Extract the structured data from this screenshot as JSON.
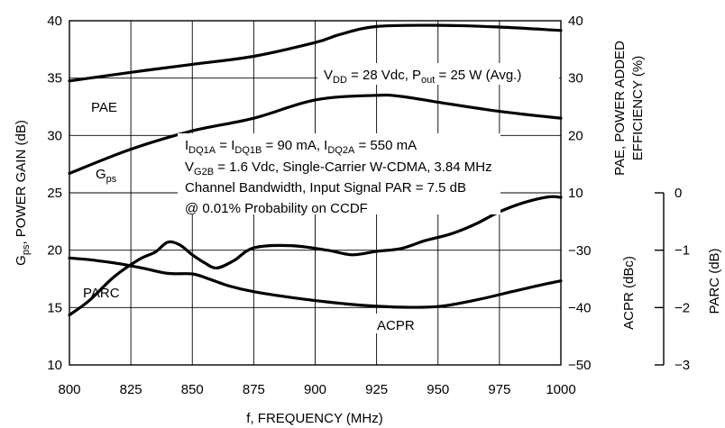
{
  "chart_data": {
    "type": "line",
    "xlabel": "f, FREQUENCY (MHz)",
    "x_ticks": [
      "800",
      "825",
      "850",
      "875",
      "900",
      "925",
      "950",
      "975",
      "1000"
    ],
    "xlim": [
      800,
      1000
    ],
    "y_left": {
      "label_main": "G",
      "label_sub": "ps",
      "label_rest": ", POWER GAIN (dB)",
      "ylim": [
        10,
        40
      ],
      "ticks": [
        "10",
        "15",
        "20",
        "25",
        "30",
        "35",
        "40"
      ]
    },
    "y_right_pae": {
      "label_line1": "PAE, POWER ADDED",
      "label_line2": "EFFICIENCY (%)",
      "range": [
        20,
        40
      ],
      "ticks": [
        "40",
        "30",
        "20",
        "10"
      ]
    },
    "y_right_acpr": {
      "label": "ACPR (dBc)",
      "range": [
        -50,
        -30
      ],
      "ticks": [
        "-30",
        "-40",
        "-50"
      ]
    },
    "y_far_right_parc": {
      "label": "PARC (dB)",
      "range": [
        -3,
        0
      ],
      "ticks": [
        "0",
        "-1",
        "-2",
        "-3"
      ]
    },
    "series": [
      {
        "name": "PAE",
        "x": [
          800,
          825,
          850,
          875,
          900,
          910,
          925,
          950,
          975,
          1000
        ],
        "y": [
          29.5,
          31.0,
          32.4,
          33.8,
          36.2,
          37.6,
          39.0,
          39.2,
          38.9,
          38.3
        ]
      },
      {
        "name": "G",
        "x": [
          800,
          825,
          850,
          875,
          900,
          925,
          935,
          950,
          975,
          1000
        ],
        "y": [
          26.7,
          28.8,
          30.4,
          31.5,
          33.1,
          33.5,
          33.4,
          32.9,
          32.1,
          31.5
        ]
      },
      {
        "name": "ACPR",
        "x": [
          800,
          810,
          820,
          830,
          840,
          850,
          857,
          865,
          875,
          890,
          905,
          920,
          935,
          950,
          965,
          980,
          990,
          1000
        ],
        "y": [
          -31.3,
          -31.7,
          -32.3,
          -33.1,
          -34.0,
          -34.1,
          -35.0,
          -36.2,
          -37.2,
          -38.2,
          -39.0,
          -39.6,
          -39.9,
          -39.8,
          -38.7,
          -37.2,
          -36.2,
          -35.3
        ]
      },
      {
        "name": "PARC",
        "x": [
          800,
          808,
          818,
          828,
          835,
          840,
          845,
          850,
          855,
          860,
          867,
          875,
          890,
          905,
          915,
          925,
          935,
          945,
          955,
          965,
          975,
          985,
          995,
          1000
        ],
        "y": [
          -2.13,
          -1.88,
          -1.47,
          -1.17,
          -1.03,
          -0.86,
          -0.91,
          -1.08,
          -1.22,
          -1.31,
          -1.18,
          -0.96,
          -0.92,
          -1.0,
          -1.08,
          -1.02,
          -0.97,
          -0.83,
          -0.72,
          -0.55,
          -0.33,
          -0.17,
          -0.07,
          -0.08
        ]
      }
    ],
    "series_labels": [
      {
        "text": "PAE"
      },
      {
        "text": "G",
        "sub": "ps"
      },
      {
        "text": "PARC"
      },
      {
        "text": "ACPR"
      }
    ],
    "annotations": {
      "vdd": {
        "a": "V",
        "a_sub": "DD",
        "b": " = 28 Vdc, P",
        "b_sub": "out",
        "c": " = 25 W (Avg.)"
      },
      "idq": {
        "a": "I",
        "a_sub": "DQ1A",
        "b": " = I",
        "b_sub": "DQ1B",
        "c": " = 90 mA, I",
        "c_sub": "DQ2A",
        "d": " = 550 mA"
      },
      "vg2b": {
        "a": "V",
        "a_sub": "G2B",
        "b": " = 1.6 Vdc, Single-Carrier W-CDMA, 3.84 MHz"
      },
      "bw": "Channel Bandwidth, Input Signal PAR = 7.5 dB",
      "ccdf": "@ 0.01% Probability on CCDF"
    }
  }
}
